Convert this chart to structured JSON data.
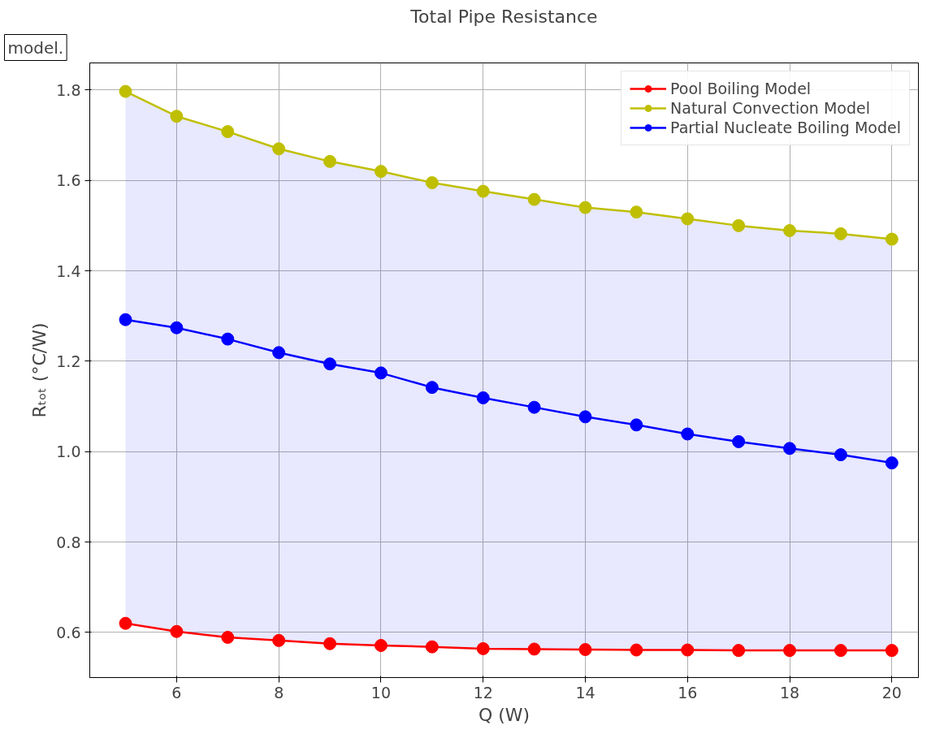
{
  "chart_data": {
    "type": "line",
    "title": "Total Pipe Resistance",
    "xlabel": "Q (W)",
    "ylabel": "Rₜₒₜ (°C/W)",
    "annotations": [
      "model."
    ],
    "x": [
      5,
      6,
      7,
      8,
      9,
      10,
      11,
      12,
      13,
      14,
      15,
      16,
      17,
      18,
      19,
      20
    ],
    "series": [
      {
        "name": "Pool Boiling Model",
        "color": "#ff0000",
        "values": [
          0.62,
          0.602,
          0.589,
          0.582,
          0.575,
          0.571,
          0.568,
          0.564,
          0.563,
          0.562,
          0.561,
          0.561,
          0.56,
          0.56,
          0.56,
          0.56
        ]
      },
      {
        "name": "Natural Convection Model",
        "color": "#bfbf00",
        "values": [
          1.797,
          1.742,
          1.708,
          1.67,
          1.642,
          1.62,
          1.595,
          1.576,
          1.558,
          1.54,
          1.53,
          1.515,
          1.5,
          1.489,
          1.482,
          1.47
        ]
      },
      {
        "name": "Partial Nucleate Boiling Model",
        "color": "#0000ff",
        "values": [
          1.292,
          1.274,
          1.249,
          1.219,
          1.194,
          1.174,
          1.142,
          1.119,
          1.098,
          1.077,
          1.059,
          1.039,
          1.022,
          1.007,
          0.993,
          0.975
        ],
        "lower": [
          0.62,
          0.602,
          0.589,
          0.582,
          0.575,
          0.571,
          0.568,
          0.564,
          0.563,
          0.562,
          0.561,
          0.561,
          0.56,
          0.56,
          0.56,
          0.56
        ],
        "upper": [
          1.797,
          1.742,
          1.708,
          1.67,
          1.642,
          1.62,
          1.595,
          1.576,
          1.558,
          1.54,
          1.53,
          1.515,
          1.5,
          1.489,
          1.482,
          1.47
        ]
      }
    ],
    "xlim": [
      4.3,
      20.52
    ],
    "ylim": [
      0.5,
      1.86
    ],
    "xticks": [
      6,
      8,
      10,
      12,
      14,
      16,
      18,
      20
    ],
    "yticks": [
      {
        "value": 0.6,
        "label": "0.6"
      },
      {
        "value": 0.8,
        "label": "0.8"
      },
      {
        "value": 1.0,
        "label": "1.0"
      },
      {
        "value": 1.2,
        "label": "1.2"
      },
      {
        "value": 1.4,
        "label": "1.4"
      },
      {
        "value": 1.6,
        "label": "1.6"
      },
      {
        "value": 1.8,
        "label": "1.8"
      }
    ],
    "grid": true,
    "legend": "top right",
    "marker": "circle",
    "line_style": "solid"
  }
}
